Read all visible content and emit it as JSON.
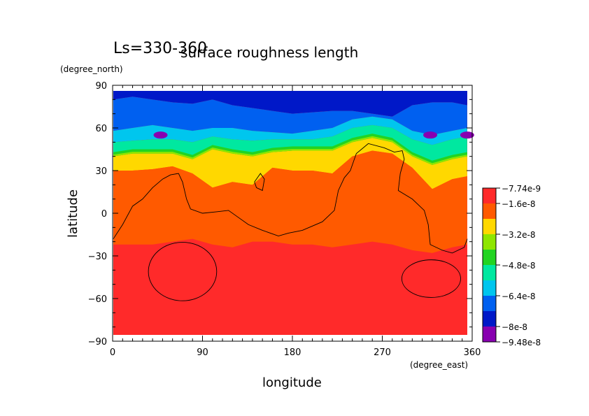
{
  "chart_data": {
    "type": "heatmap",
    "subtitle": "Ls=330-360",
    "title": "surface roughness length",
    "xlabel": "longitude",
    "ylabel": "latitude",
    "x_unit": "(degree_east)",
    "y_unit": "(degree_north)",
    "xlim": [
      0,
      360
    ],
    "ylim": [
      -90,
      90
    ],
    "x_ticks": [
      "0",
      "90",
      "180",
      "270",
      "360"
    ],
    "y_ticks": [
      "90",
      "60",
      "30",
      "0",
      "−30",
      "−60",
      "−90"
    ],
    "x_tick_values": [
      0,
      90,
      180,
      270,
      360
    ],
    "y_tick_values": [
      90,
      60,
      30,
      0,
      -30,
      -60,
      -90
    ],
    "colorbar": {
      "labels": [
        "−7.74e-9",
        "−1.6e-8",
        "−3.2e-8",
        "−4.8e-8",
        "−6.4e-8",
        "−8e-8",
        "−9.48e-8"
      ],
      "level_values": [
        -7.74e-09,
        -1.6e-08,
        -3.2e-08,
        -4.8e-08,
        -6.4e-08,
        -8e-08,
        -9.48e-08
      ],
      "colors_top_to_bottom": [
        "#ff2a2a",
        "#ff5a00",
        "#ffd800",
        "#8ee600",
        "#22d422",
        "#00e8a0",
        "#00c6ee",
        "#0060f0",
        "#0018c8",
        "#8800b0"
      ]
    },
    "lon_points": [
      0,
      20,
      40,
      60,
      80,
      100,
      120,
      140,
      160,
      180,
      200,
      220,
      240,
      260,
      280,
      300,
      320,
      340,
      355
    ],
    "field_boundaries": [
      {
        "level": "dark-blue/blue",
        "lat": [
          80,
          82,
          80,
          78,
          77,
          80,
          76,
          74,
          72,
          70,
          71,
          72,
          72,
          70,
          68,
          76,
          78,
          78,
          76
        ]
      },
      {
        "level": "blue/light-blue",
        "lat": [
          58,
          60,
          62,
          60,
          58,
          60,
          60,
          58,
          57,
          56,
          58,
          60,
          66,
          68,
          66,
          58,
          55,
          58,
          60
        ]
      },
      {
        "level": "light-blue/teal",
        "lat": [
          50,
          51,
          52,
          52,
          50,
          54,
          52,
          51,
          52,
          52,
          52,
          54,
          60,
          62,
          60,
          52,
          48,
          52,
          54
        ]
      },
      {
        "level": "green/yellow",
        "lat": [
          40,
          42,
          42,
          42,
          38,
          45,
          42,
          40,
          43,
          44,
          44,
          44,
          50,
          53,
          50,
          40,
          34,
          38,
          40
        ]
      },
      {
        "level": "yellow/orange",
        "lat": [
          30,
          30,
          31,
          33,
          28,
          18,
          22,
          20,
          32,
          30,
          30,
          28,
          40,
          44,
          42,
          32,
          17,
          24,
          26
        ]
      },
      {
        "level": "orange/red",
        "lat": [
          -22,
          -22,
          -22,
          -20,
          -18,
          -22,
          -24,
          -20,
          -20,
          -22,
          -22,
          -24,
          -22,
          -20,
          -22,
          -26,
          -28,
          -24,
          -22
        ]
      }
    ]
  }
}
